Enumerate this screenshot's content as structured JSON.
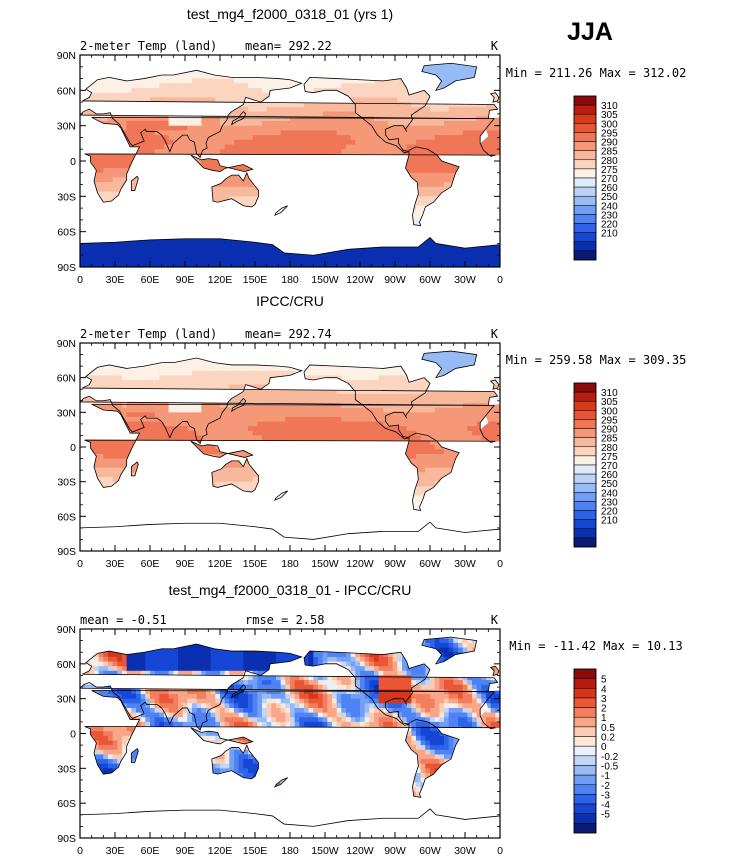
{
  "season": "JJA",
  "lon_ticks": [
    "0",
    "30E",
    "60E",
    "90E",
    "120E",
    "150E",
    "180",
    "150W",
    "120W",
    "90W",
    "60W",
    "30W",
    "0"
  ],
  "lat_ticks": [
    "90N",
    "60N",
    "30N",
    "0",
    "30S",
    "60S",
    "90S"
  ],
  "colors": {
    "abs": [
      "#0b1a73",
      "#0a2fb0",
      "#1546d6",
      "#2d63eb",
      "#4f82f2",
      "#729ff5",
      "#97bbf5",
      "#bcd3f7",
      "#ddebfb",
      "#fdf1e6",
      "#fbd5bf",
      "#f8b89c",
      "#f59878",
      "#ef7657",
      "#e85434",
      "#d93a1c",
      "#b81e10",
      "#8c0a0a"
    ],
    "diff": [
      "#0b1a73",
      "#0a2fb0",
      "#1546d6",
      "#2d63eb",
      "#4f82f2",
      "#729ff5",
      "#97bbf5",
      "#c0d7f8",
      "#e8f1fc",
      "#fde8d8",
      "#fbcbb2",
      "#f7a688",
      "#f27e5e",
      "#ea5636",
      "#d6361a",
      "#b71a0f",
      "#8c0a0a"
    ]
  },
  "chart_data": [
    {
      "type": "heatmap",
      "title": "test_mg4_f2000_0318_01 (yrs 1)",
      "left_label": "2-meter Temp (land)",
      "center_label": "mean= 292.22",
      "right_label": "K",
      "stats": "Min = 211.26 Max = 312.02",
      "field": "model",
      "mean": 292.22,
      "min": 211.26,
      "max": 312.02,
      "xlim": [
        0,
        360
      ],
      "ylim": [
        -90,
        90
      ],
      "colorbar_labels": [
        "310",
        "305",
        "300",
        "295",
        "290",
        "285",
        "280",
        "275",
        "270",
        "260",
        "250",
        "240",
        "230",
        "220",
        "210"
      ],
      "colorbar_levels": [
        210,
        220,
        230,
        240,
        250,
        260,
        270,
        275,
        280,
        285,
        290,
        295,
        300,
        305,
        310
      ]
    },
    {
      "type": "heatmap",
      "title": "IPCC/CRU",
      "left_label": "2-meter Temp (land)",
      "center_label": "mean= 292.74",
      "right_label": "K",
      "stats": "Min = 259.58 Max = 309.35",
      "field": "obs",
      "mean": 292.74,
      "min": 259.58,
      "max": 309.35,
      "xlim": [
        0,
        360
      ],
      "ylim": [
        -90,
        90
      ],
      "colorbar_labels": [
        "310",
        "305",
        "300",
        "295",
        "290",
        "285",
        "280",
        "275",
        "270",
        "260",
        "250",
        "240",
        "230",
        "220",
        "210"
      ],
      "colorbar_levels": [
        210,
        220,
        230,
        240,
        250,
        260,
        270,
        275,
        280,
        285,
        290,
        295,
        300,
        305,
        310
      ]
    },
    {
      "type": "heatmap",
      "title": "test_mg4_f2000_0318_01 - IPCC/CRU",
      "left_label": "mean =   -0.51",
      "center_label": "rmse =    2.58",
      "right_label": "K",
      "stats": "Min = -11.42 Max =  10.13",
      "field": "diff",
      "mean": -0.51,
      "rmse": 2.58,
      "min": -11.42,
      "max": 10.13,
      "xlim": [
        0,
        360
      ],
      "ylim": [
        -90,
        90
      ],
      "colorbar_labels": [
        "5",
        "4",
        "3",
        "2",
        "1",
        "0.5",
        "0.2",
        "0",
        "-0.2",
        "-0.5",
        "-1",
        "-2",
        "-3",
        "-4",
        "-5"
      ],
      "colorbar_levels": [
        -5,
        -4,
        -3,
        -2,
        -1,
        -0.5,
        -0.2,
        0,
        0.2,
        0.5,
        1,
        2,
        3,
        4,
        5
      ]
    }
  ]
}
